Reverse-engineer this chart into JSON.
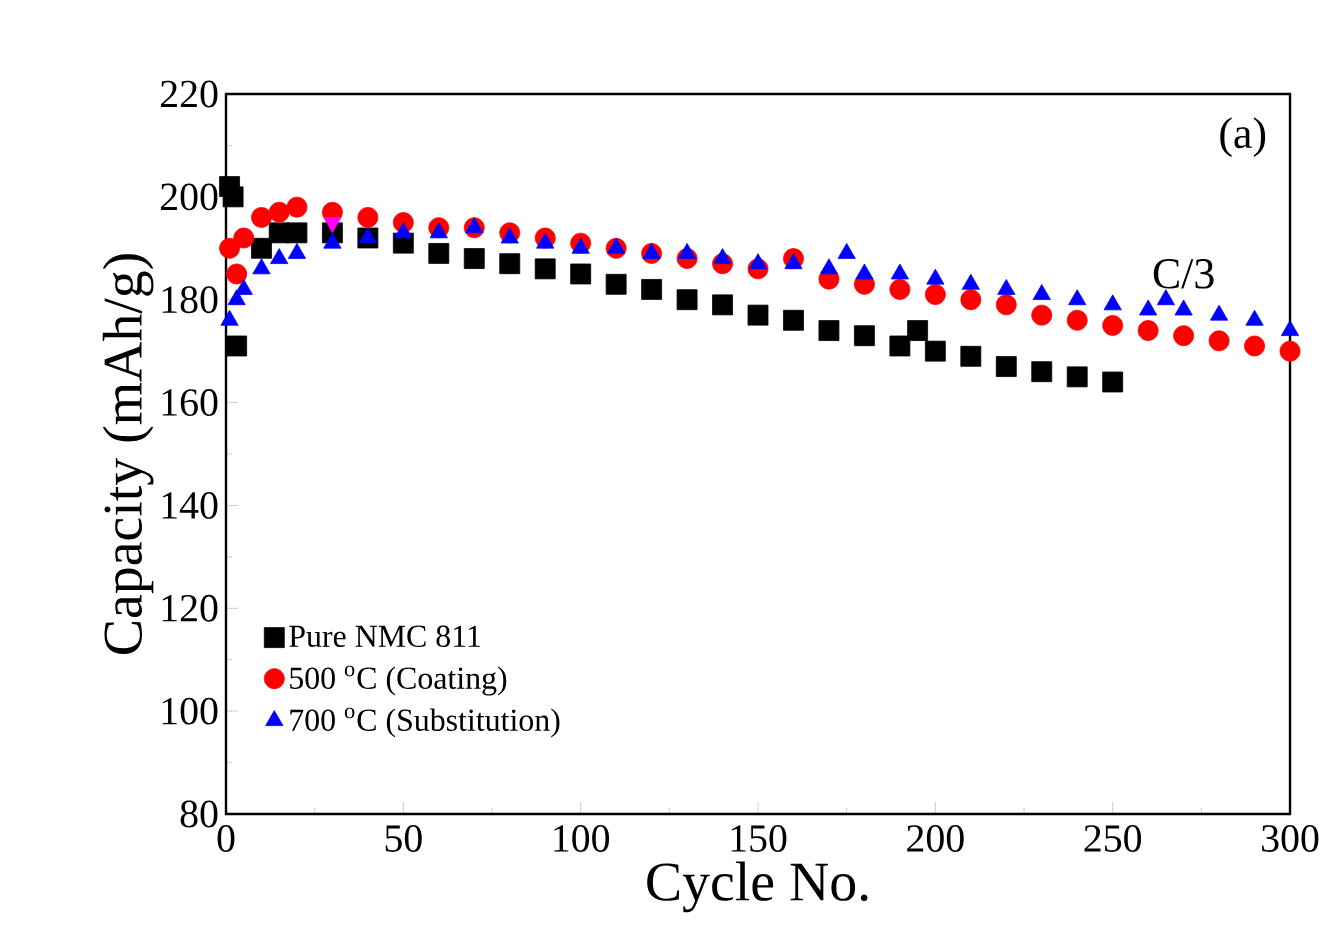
{
  "chart_data": {
    "type": "scatter",
    "xlabel": "Cycle No.",
    "ylabel": "Capacity (mAh/g)",
    "xlim": [
      0,
      300
    ],
    "ylim": [
      80,
      220
    ],
    "xticks": [
      0,
      50,
      100,
      150,
      200,
      250,
      300
    ],
    "yticks": [
      80,
      100,
      120,
      140,
      160,
      180,
      200,
      220
    ],
    "grid": false,
    "legend": "bottom left",
    "annotations": [
      "(a)",
      "C/3"
    ],
    "series": [
      {
        "name": "Pure NMC 811",
        "color": "#000000",
        "marker": "square",
        "x": [
          1,
          2,
          3,
          5,
          10,
          15,
          20,
          30,
          40,
          50,
          60,
          70,
          80,
          90,
          100,
          110,
          120,
          130,
          140,
          150,
          160,
          170,
          180,
          190,
          195,
          200,
          210,
          220,
          230,
          240,
          250
        ],
        "values": [
          202,
          200,
          171,
          null,
          190,
          193,
          193,
          193,
          192,
          191,
          189,
          188,
          187,
          186,
          185,
          183,
          182,
          180,
          179,
          177,
          176,
          174,
          173,
          171,
          174,
          170,
          169,
          167,
          166,
          165,
          164
        ]
      },
      {
        "name": "500 $^{o}$C (Coating)",
        "color": "#ff0000",
        "marker": "circle",
        "x": [
          1,
          3,
          5,
          10,
          15,
          20,
          30,
          40,
          50,
          60,
          70,
          80,
          90,
          100,
          110,
          120,
          130,
          140,
          150,
          160,
          170,
          180,
          190,
          200,
          210,
          220,
          230,
          240,
          250,
          260,
          270,
          280,
          290,
          300
        ],
        "values": [
          190,
          185,
          192,
          196,
          197,
          198,
          197,
          196,
          195,
          194,
          194,
          193,
          192,
          191,
          190,
          189,
          188,
          187,
          186,
          188,
          184,
          183,
          182,
          181,
          180,
          179,
          177,
          176,
          175,
          174,
          173,
          172,
          171,
          170
        ]
      },
      {
        "name": "700 $^{o}$C (Substitution)",
        "color": "#0000ff",
        "marker": "triangle",
        "x": [
          1,
          3,
          5,
          10,
          15,
          20,
          30,
          40,
          50,
          60,
          70,
          80,
          90,
          100,
          110,
          120,
          130,
          140,
          150,
          160,
          170,
          175,
          180,
          190,
          200,
          210,
          220,
          230,
          240,
          250,
          260,
          265,
          270,
          280,
          290,
          300
        ],
        "values": [
          176,
          180,
          182,
          186,
          188,
          189,
          191,
          192,
          193,
          193,
          194,
          192,
          191,
          190,
          190,
          189,
          189,
          188,
          187,
          187,
          186,
          189,
          185,
          185,
          184,
          183,
          182,
          181,
          180,
          179,
          178,
          180,
          178,
          177,
          176,
          174
        ]
      },
      {
        "color": "#ff00ff",
        "marker": "triangle down",
        "x": [
          30
        ],
        "values": [
          195
        ]
      }
    ]
  }
}
